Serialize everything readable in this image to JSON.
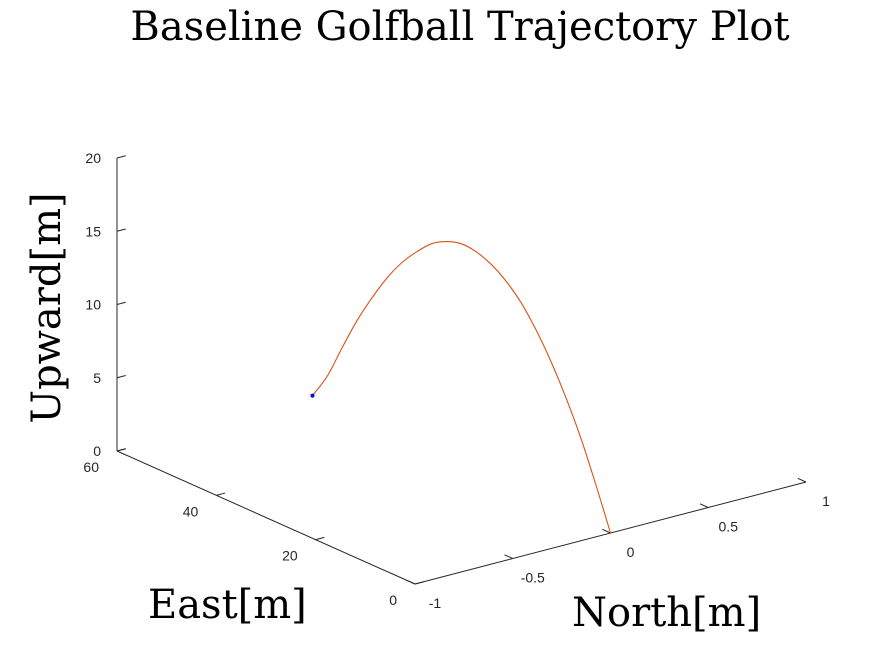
{
  "chart_data": {
    "type": "line",
    "projection": "3d",
    "title": "Baseline Golfball Trajectory Plot",
    "xlabel": "North[m]",
    "ylabel": "East[m]",
    "zlabel": "Upward[m]",
    "xlim": [
      -1,
      1
    ],
    "ylim": [
      0,
      60
    ],
    "zlim": [
      0,
      20
    ],
    "xticks": [
      -1,
      -0.5,
      0,
      0.5,
      1
    ],
    "xtick_labels": [
      "-1",
      "-0.5",
      "0",
      "0.5",
      "1"
    ],
    "yticks": [
      0,
      20,
      40,
      60
    ],
    "ytick_labels": [
      "0",
      "20",
      "40",
      "60"
    ],
    "zticks": [
      0,
      5,
      10,
      15,
      20
    ],
    "ztick_labels": [
      "0",
      "5",
      "10",
      "15",
      "20"
    ],
    "grid": false,
    "series": [
      {
        "color": "#d95319",
        "x": [
          0,
          0,
          0,
          0,
          0,
          0,
          0,
          0,
          0,
          0,
          0,
          0,
          0,
          0,
          0,
          0,
          0,
          0,
          0,
          0,
          0
        ],
        "y": [
          0,
          3,
          6,
          9,
          12,
          15,
          18,
          21,
          24,
          27,
          30,
          33,
          36,
          39,
          42,
          45,
          48,
          51,
          54,
          57,
          60
        ],
        "z": [
          0,
          2.9,
          5.6,
          7.9,
          9.9,
          11.6,
          13.0,
          14.0,
          14.7,
          15.1,
          15.2,
          14.9,
          14.3,
          13.3,
          12.1,
          10.6,
          8.8,
          6.8,
          4.5,
          2.1,
          0.3
        ]
      }
    ],
    "markers": [
      {
        "x": 0,
        "y": 60,
        "z": 0.3,
        "color": "#0000ff"
      }
    ]
  }
}
